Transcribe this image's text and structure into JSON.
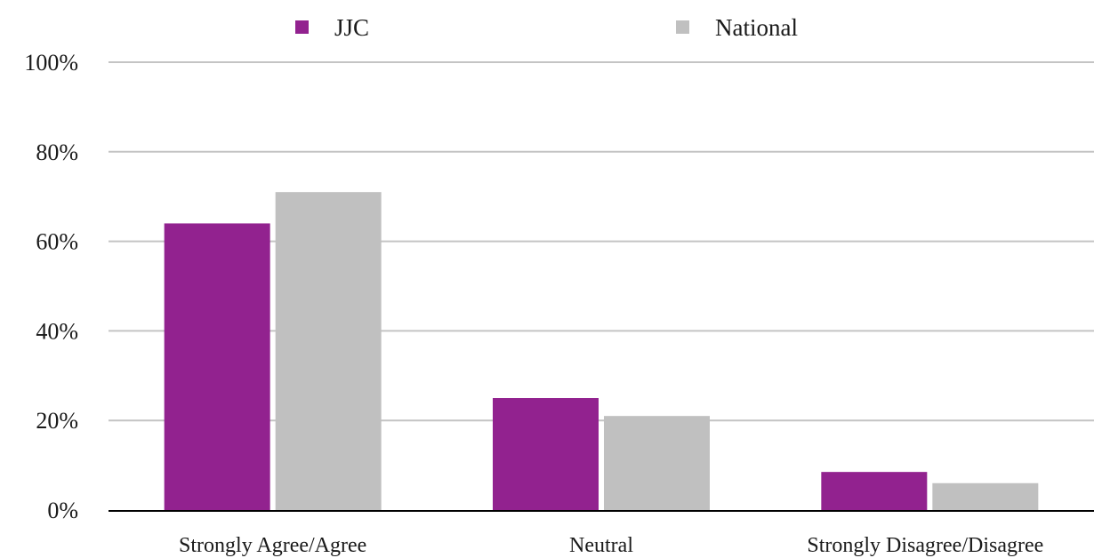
{
  "chart_data": {
    "type": "bar",
    "title": "",
    "xlabel": "",
    "ylabel": "",
    "categories": [
      "Strongly Agree/Agree",
      "Neutral",
      "Strongly Disagree/Disagree"
    ],
    "series": [
      {
        "name": "JJC",
        "values": [
          64,
          25,
          8.5
        ],
        "color": "#92228f"
      },
      {
        "name": "National",
        "values": [
          71,
          21,
          6
        ],
        "color": "#c0c0c0"
      }
    ],
    "ylim": [
      0,
      100
    ],
    "yticks": [
      0,
      20,
      40,
      60,
      80,
      100
    ],
    "ytick_labels": [
      "0%",
      "20%",
      "40%",
      "60%",
      "80%",
      "100%"
    ],
    "grid": true,
    "legend_position": "top"
  }
}
